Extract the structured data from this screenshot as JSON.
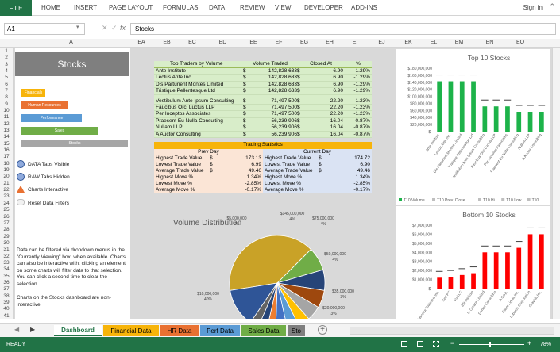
{
  "ribbon": {
    "file": "FILE",
    "items": [
      "HOME",
      "INSERT",
      "PAGE LAYOUT",
      "FORMULAS",
      "DATA",
      "REVIEW",
      "VIEW",
      "DEVELOPER",
      "ADD-INS"
    ],
    "signin": "Sign in"
  },
  "formula": {
    "name_box": "A1",
    "value": "Stocks",
    "fx": "fx"
  },
  "columns": [
    "A",
    "EA",
    "EB",
    "EC",
    "ED",
    "EE",
    "EF",
    "EG",
    "EH",
    "EI",
    "EJ",
    "EK",
    "EL",
    "EM",
    "EN",
    "EO"
  ],
  "rows": [
    "1",
    "2",
    "3",
    "4",
    "5",
    "6",
    "7",
    "8",
    "9",
    "10",
    "11",
    "12",
    "13",
    "14",
    "15",
    "16",
    "17",
    "18",
    "19",
    "20",
    "21",
    "22",
    "23",
    "24",
    "25",
    "26",
    "27",
    "28",
    "29",
    "30",
    "31",
    "32",
    "33",
    "34",
    "35",
    "36",
    "37",
    "38",
    "39",
    "40",
    "41"
  ],
  "panel": {
    "title": "Stocks",
    "nav": [
      {
        "label": "Financials",
        "color": "#f7b40a"
      },
      {
        "label": "Human Resources",
        "color": "#e97132"
      },
      {
        "label": "Performance",
        "color": "#5b9bd5"
      },
      {
        "label": "Sales",
        "color": "#70ad47"
      },
      {
        "label": "Stocks",
        "color": "#a6a6a6"
      }
    ],
    "legend": [
      "DATA Tabs Visible",
      "RAW Tabs Hidden",
      "Charts Interactive",
      "Reset Data Filters"
    ],
    "note1": "Data can be filtered via dropdown menus in the \"Currently Viewing\" box, when available. Charts can also be interactive with: clicking an element on some charts will filter data to that selection. You can click a second time to clear the selection.",
    "note2": "Charts on the Stocks dashboard are non-interactive."
  },
  "top_traders": {
    "headers": [
      "Top Traders by Volume",
      "Volume Traded",
      "Closed At",
      "%"
    ],
    "rows": [
      [
        "Ante Institute",
        "$",
        "142,828,633",
        "$",
        "6.90",
        "-1.29%"
      ],
      [
        "Lectus Ante Inc.",
        "$",
        "142,828,633",
        "$",
        "6.90",
        "-1.29%"
      ],
      [
        "Dis Parturient Montes Limited",
        "$",
        "142,828,633",
        "$",
        "6.90",
        "-1.29%"
      ],
      [
        "Tristique Pellentesque Ltd",
        "$",
        "142,828,633",
        "$",
        "6.90",
        "-1.29%"
      ],
      [
        "Vestibulum Ante Ipsum Consulting",
        "$",
        "71,497,500",
        "$",
        "22.20",
        "-1.23%"
      ],
      [
        "Faucibus Orci Luctus LLP",
        "$",
        "71,497,500",
        "$",
        "22.20",
        "-1.23%"
      ],
      [
        "Per Inceptos Associates",
        "$",
        "71,497,500",
        "$",
        "22.20",
        "-1.23%"
      ],
      [
        "Praesent Eu Nulla Consulting",
        "$",
        "56,239,906",
        "$",
        "16.04",
        "-0.87%"
      ],
      [
        "Nullam LLP",
        "$",
        "56,239,906",
        "$",
        "16.04",
        "-0.87%"
      ],
      [
        "A Auctor Consulting",
        "$",
        "56,239,906",
        "$",
        "16.04",
        "-0.87%"
      ]
    ]
  },
  "stats": {
    "title": "Trading Statistics",
    "prev": "Prev Day",
    "curr": "Current Day",
    "rows": [
      [
        "Highest Trade Value",
        "$",
        "173.13",
        "Highest Trade Value",
        "$",
        "174.72"
      ],
      [
        "Lowest Trade Value",
        "$",
        "6.99",
        "Lowest Trade Value",
        "$",
        "6.90"
      ],
      [
        "Average Trade Value",
        "$",
        "49.46",
        "Average Trade Value",
        "$",
        "49.46"
      ],
      [
        "Highest Move %",
        "",
        "1.34%",
        "Highest Move %",
        "",
        "1.34%"
      ],
      [
        "Lowest Move %",
        "",
        "-2.85%",
        "Lowest Move %",
        "",
        "-2.85%"
      ],
      [
        "Average Move %",
        "",
        "-0.17%",
        "Average Move %",
        "",
        "-0.17%"
      ]
    ]
  },
  "charts": {
    "top10_title": "Top 10 Stocks",
    "bottom10_title": "Bottom 10 Stocks",
    "volume_title": "Volume Distribution",
    "legend": [
      "T10 Volume",
      "T10 Prev. Close",
      "T10 Hi",
      "T10 Low",
      "T10"
    ]
  },
  "chart_data": [
    {
      "type": "bar",
      "title": "Top 10 Stocks",
      "categories": [
        "Ante Institute",
        "Lectus Ante Inc.",
        "Dis Parturient Montes Limited",
        "Tristique Pellentesque Ltd",
        "Vestibulum Ante Ipsum Consulting",
        "Faucibus Orci Luctus LLP",
        "Per Inceptos Associates",
        "Praesent Eu Nulla Consulting",
        "Nullam LLP",
        "A Auctor Consulting"
      ],
      "values": [
        142828633,
        142828633,
        142828633,
        142828633,
        71497500,
        71497500,
        71497500,
        56239906,
        56239906,
        56239906
      ],
      "ylim": [
        0,
        180000000
      ],
      "yticks": [
        "$-",
        "$20,000,000",
        "$40,000,000",
        "$60,000,000",
        "$80,000,000",
        "$100,000,000",
        "$120,000,000",
        "$140,000,000",
        "$160,000,000",
        "$180,000,000"
      ],
      "color": "#1db34a"
    },
    {
      "type": "bar",
      "title": "Bottom 10 Stocks",
      "categories": [
        "Nascetur Ridiculus Inc.",
        "Sed PC",
        "Eu LLC",
        "Elit Institute",
        "In Ornare Limited",
        "Donec Consulting",
        "A Corp.",
        "Etiam Ligula Inc.",
        "Lobortis Corporation",
        "Gravida Inc."
      ],
      "values": [
        1200000,
        1300000,
        1500000,
        1700000,
        4000000,
        4000000,
        4000000,
        4500000,
        6000000,
        6000000
      ],
      "ylim": [
        0,
        7000000
      ],
      "yticks": [
        "$-",
        "$1,000,000",
        "$2,000,000",
        "$3,000,000",
        "$4,000,000",
        "$5,000,000",
        "$6,000,000",
        "$7,000,000"
      ],
      "color": "#ff0000"
    },
    {
      "type": "pie",
      "title": "Volume Distribution",
      "labels": [
        "$10,000,000",
        "$5,000,000",
        "$145,000,000",
        "$75,000,000",
        "$35,000,000",
        "$30,000,000",
        "$50,000,000"
      ],
      "percents": [
        40,
        7,
        4,
        4,
        3,
        3,
        4
      ],
      "colors": [
        "#c9a227",
        "#2f5597",
        "#ffc000",
        "#5b9bd5",
        "#a5a5a5",
        "#70ad47",
        "#264478"
      ]
    }
  ],
  "sheet_tabs": [
    {
      "label": "Dashboard",
      "color": "#fff"
    },
    {
      "label": "Financial Data",
      "color": "#f7b40a"
    },
    {
      "label": "HR Data",
      "color": "#e97132"
    },
    {
      "label": "Perf Data",
      "color": "#5b9bd5"
    },
    {
      "label": "Sales Data",
      "color": "#70ad47"
    },
    {
      "label": "Sto",
      "color": "#7f7f7f"
    }
  ],
  "status": {
    "ready": "READY",
    "zoom": "78%"
  }
}
